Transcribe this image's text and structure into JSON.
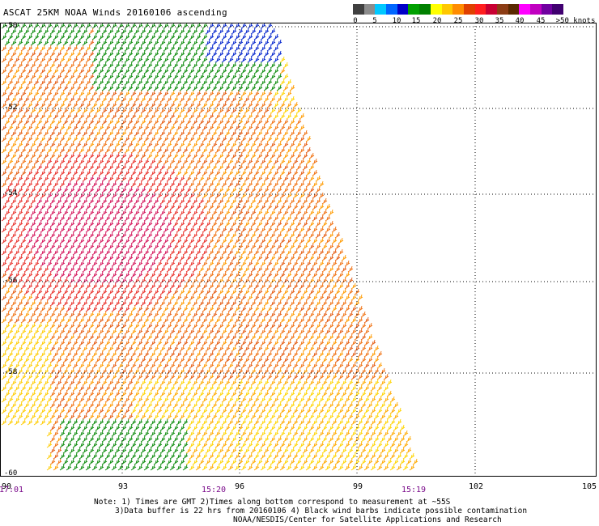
{
  "title": "ASCAT 25KM NOAA Winds 20160106 ascending",
  "legend": {
    "colors": [
      "#404040",
      "#8c8c8c",
      "#00c8ff",
      "#0066ff",
      "#0000c8",
      "#00a000",
      "#008000",
      "#ffff00",
      "#ffc800",
      "#ff8c00",
      "#e04000",
      "#ff1e1e",
      "#c80032",
      "#8c3c14",
      "#5a2800",
      "#ff00ff",
      "#c000c0",
      "#7000a0",
      "#400070"
    ],
    "labels": [
      "0",
      "5",
      "10",
      "15",
      "20",
      "25",
      "30",
      "35",
      "40",
      "45",
      ">50 knots"
    ]
  },
  "axes": {
    "latitudes": [
      "-50",
      "-52",
      "-54",
      "-56",
      "-58",
      "-60"
    ],
    "longitudes": [
      "90",
      "93",
      "96",
      "99",
      "102",
      "105"
    ],
    "times": [
      "17:01",
      "15:20",
      "15:19"
    ]
  },
  "notes": {
    "line1": "Note: 1) Times are GMT 2)Times along bottom correspond to measurement at ~55S",
    "line2": "3)Data buffer is 22 hrs from 20160106 4) Black wind barbs indicate possible contamination",
    "line3": "NOAA/NESDIS/Center for Satellite Applications and Research"
  }
}
